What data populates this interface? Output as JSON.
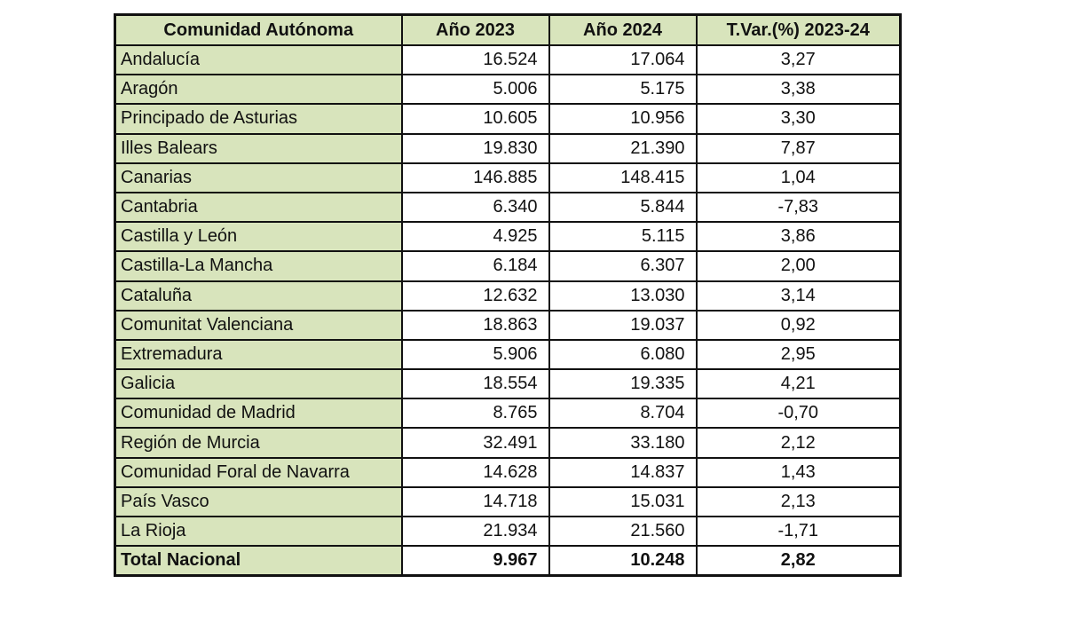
{
  "table": {
    "header": [
      "Comunidad Autónoma",
      "Año 2023",
      "Año 2024",
      "T.Var.(%) 2023-24"
    ],
    "rows": [
      [
        "Andalucía",
        "16.524",
        "17.064",
        "3,27"
      ],
      [
        "Aragón",
        "5.006",
        "5.175",
        "3,38"
      ],
      [
        "Principado de Asturias",
        "10.605",
        "10.956",
        "3,30"
      ],
      [
        "Illes Balears",
        "19.830",
        "21.390",
        "7,87"
      ],
      [
        "Canarias",
        "146.885",
        "148.415",
        "1,04"
      ],
      [
        "Cantabria",
        "6.340",
        "5.844",
        "-7,83"
      ],
      [
        "Castilla y León",
        "4.925",
        "5.115",
        "3,86"
      ],
      [
        "Castilla-La Mancha",
        "6.184",
        "6.307",
        "2,00"
      ],
      [
        "Cataluña",
        "12.632",
        "13.030",
        "3,14"
      ],
      [
        "Comunitat Valenciana",
        "18.863",
        "19.037",
        "0,92"
      ],
      [
        "Extremadura",
        "5.906",
        "6.080",
        "2,95"
      ],
      [
        "Galicia",
        "18.554",
        "19.335",
        "4,21"
      ],
      [
        "Comunidad de Madrid",
        "8.765",
        "8.704",
        "-0,70"
      ],
      [
        "Región de Murcia",
        "32.491",
        "33.180",
        "2,12"
      ],
      [
        "Comunidad Foral de Navarra",
        "14.628",
        "14.837",
        "1,43"
      ],
      [
        "País Vasco",
        "14.718",
        "15.031",
        "2,13"
      ],
      [
        "La Rioja",
        "21.934",
        "21.560",
        "-1,71"
      ]
    ],
    "total": [
      "Total Nacional",
      "9.967",
      "10.248",
      "2,82"
    ]
  },
  "colors": {
    "header_fill": "#d8e4bc",
    "border": "#111111"
  }
}
